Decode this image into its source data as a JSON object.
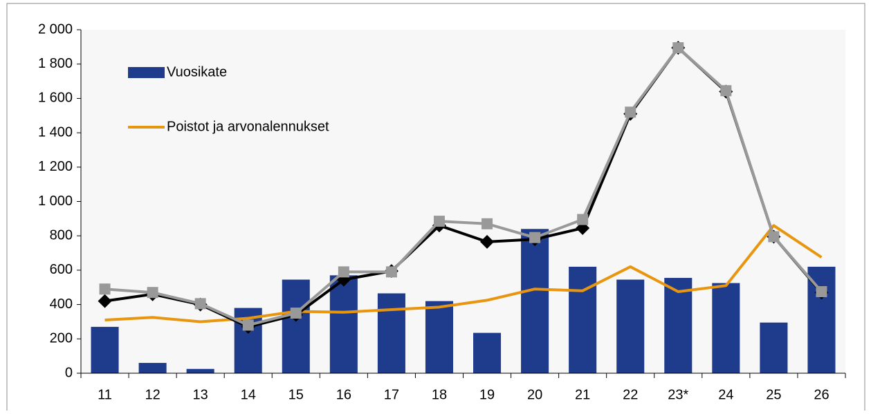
{
  "chart_data": {
    "type": "bar_line",
    "categories": [
      "11",
      "12",
      "13",
      "14",
      "15",
      "16",
      "17",
      "18",
      "19",
      "20",
      "21",
      "22",
      "23*",
      "24",
      "25",
      "26"
    ],
    "series": [
      {
        "name": "Vuosikate",
        "type": "bar",
        "color": "#1f3c8c",
        "values": [
          270,
          60,
          25,
          380,
          545,
          570,
          465,
          420,
          235,
          840,
          620,
          545,
          555,
          525,
          295,
          620
        ]
      },
      {
        "name": "Poistot ja arvonalennukset",
        "type": "line",
        "color": "#e8960f",
        "values": [
          310,
          325,
          300,
          320,
          360,
          355,
          370,
          385,
          425,
          490,
          480,
          620,
          475,
          510,
          860,
          675
        ]
      },
      {
        "type": "line",
        "marker": "diamond",
        "color": "#000000",
        "values": [
          420,
          460,
          400,
          270,
          340,
          545,
          595,
          860,
          765,
          780,
          845,
          1510,
          1895,
          1640,
          795,
          470
        ]
      },
      {
        "type": "line",
        "marker": "square",
        "color": "#999999",
        "values": [
          490,
          470,
          405,
          280,
          350,
          590,
          590,
          885,
          870,
          790,
          895,
          1520,
          1895,
          1645,
          795,
          475
        ]
      }
    ],
    "ylim": [
      0,
      2000
    ],
    "yticks": [
      0,
      200,
      400,
      600,
      800,
      {
        "value": 1000,
        "label": "1 000"
      },
      {
        "value": 1200,
        "label": "1 200"
      },
      {
        "value": 1400,
        "label": "1 400"
      },
      {
        "value": 1600,
        "label": "1 600"
      },
      {
        "value": 1800,
        "label": "1 800"
      },
      {
        "value": 2000,
        "label": "2 000"
      }
    ],
    "legend": "upper left"
  }
}
